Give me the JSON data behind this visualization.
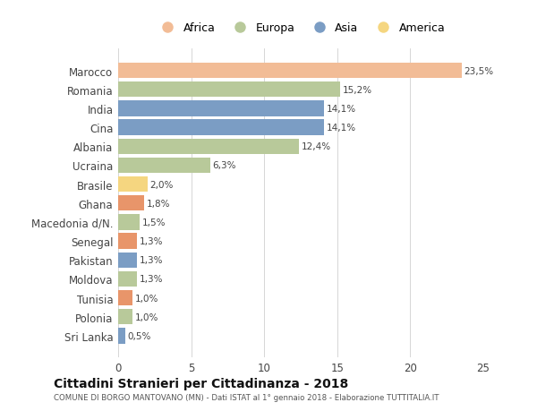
{
  "countries": [
    "Marocco",
    "Romania",
    "India",
    "Cina",
    "Albania",
    "Ucraina",
    "Brasile",
    "Ghana",
    "Macedonia d/N.",
    "Senegal",
    "Pakistan",
    "Moldova",
    "Tunisia",
    "Polonia",
    "Sri Lanka"
  ],
  "values": [
    23.5,
    15.2,
    14.1,
    14.1,
    12.4,
    6.3,
    2.0,
    1.8,
    1.5,
    1.3,
    1.3,
    1.3,
    1.0,
    1.0,
    0.5
  ],
  "labels": [
    "23,5%",
    "15,2%",
    "14,1%",
    "14,1%",
    "12,4%",
    "6,3%",
    "2,0%",
    "1,8%",
    "1,5%",
    "1,3%",
    "1,3%",
    "1,3%",
    "1,0%",
    "1,0%",
    "0,5%"
  ],
  "colors": [
    "#F2BC96",
    "#B8C99A",
    "#7B9DC4",
    "#7B9DC4",
    "#B8C99A",
    "#B8C99A",
    "#F5D680",
    "#E8956A",
    "#B8C99A",
    "#E8956A",
    "#7B9DC4",
    "#B8C99A",
    "#E8956A",
    "#B8C99A",
    "#7B9DC4"
  ],
  "legend_labels": [
    "Africa",
    "Europa",
    "Asia",
    "America"
  ],
  "legend_colors": [
    "#F2BC96",
    "#B8C99A",
    "#7B9DC4",
    "#F5D680"
  ],
  "title": "Cittadini Stranieri per Cittadinanza - 2018",
  "subtitle": "COMUNE DI BORGO MANTOVANO (MN) - Dati ISTAT al 1° gennaio 2018 - Elaborazione TUTTITALIA.IT",
  "xlim": [
    0,
    25
  ],
  "xticks": [
    0,
    5,
    10,
    15,
    20,
    25
  ],
  "bg_color": "#ffffff",
  "grid_color": "#d0d0d0"
}
